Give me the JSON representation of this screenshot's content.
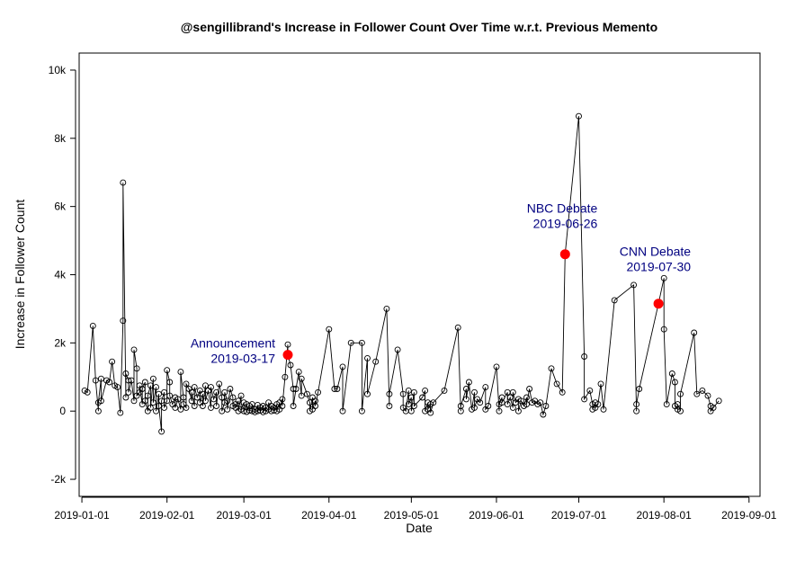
{
  "chart_data": {
    "type": "scatter",
    "title": "@sengillibrand's Increase in Follower Count Over Time w.r.t. Previous Memento",
    "xlabel": "Date",
    "ylabel": "Increase in Follower Count",
    "xlim": [
      "2018-12-31",
      "2019-09-05"
    ],
    "ylim": [
      -2500,
      10500
    ],
    "x_ticks": [
      "2019-01-01",
      "2019-02-01",
      "2019-03-01",
      "2019-04-01",
      "2019-05-01",
      "2019-06-01",
      "2019-07-01",
      "2019-08-01",
      "2019-09-01"
    ],
    "y_ticks": [
      {
        "value": -2000,
        "label": "-2k"
      },
      {
        "value": 0,
        "label": "0"
      },
      {
        "value": 2000,
        "label": "2k"
      },
      {
        "value": 4000,
        "label": "4k"
      },
      {
        "value": 6000,
        "label": "6k"
      },
      {
        "value": 8000,
        "label": "8k"
      },
      {
        "value": 10000,
        "label": "10k"
      }
    ],
    "grid": false,
    "series": [
      {
        "marker": "open-circle",
        "connected": true,
        "color": "#000000",
        "points": [
          [
            "2019-01-02",
            600
          ],
          [
            "2019-01-03",
            550
          ],
          [
            "2019-01-05",
            2500
          ],
          [
            "2019-01-06",
            900
          ],
          [
            "2019-01-07",
            0
          ],
          [
            "2019-01-07",
            250
          ],
          [
            "2019-01-08",
            950
          ],
          [
            "2019-01-08",
            300
          ],
          [
            "2019-01-10",
            900
          ],
          [
            "2019-01-11",
            850
          ],
          [
            "2019-01-12",
            1450
          ],
          [
            "2019-01-13",
            750
          ],
          [
            "2019-01-14",
            700
          ],
          [
            "2019-01-15",
            -50
          ],
          [
            "2019-01-16",
            2650
          ],
          [
            "2019-01-16",
            6700
          ],
          [
            "2019-01-17",
            400
          ],
          [
            "2019-01-17",
            1100
          ],
          [
            "2019-01-18",
            900
          ],
          [
            "2019-01-18",
            550
          ],
          [
            "2019-01-19",
            900
          ],
          [
            "2019-01-20",
            300
          ],
          [
            "2019-01-20",
            1800
          ],
          [
            "2019-01-21",
            1250
          ],
          [
            "2019-01-21",
            450
          ],
          [
            "2019-01-22",
            550
          ],
          [
            "2019-01-22",
            750
          ],
          [
            "2019-01-23",
            200
          ],
          [
            "2019-01-23",
            650
          ],
          [
            "2019-01-24",
            850
          ],
          [
            "2019-01-24",
            300
          ],
          [
            "2019-01-25",
            0
          ],
          [
            "2019-01-25",
            450
          ],
          [
            "2019-01-26",
            750
          ],
          [
            "2019-01-26",
            100
          ],
          [
            "2019-01-27",
            950
          ],
          [
            "2019-01-27",
            250
          ],
          [
            "2019-01-28",
            700
          ],
          [
            "2019-01-28",
            0
          ],
          [
            "2019-01-29",
            500
          ],
          [
            "2019-01-29",
            150
          ],
          [
            "2019-01-30",
            -600
          ],
          [
            "2019-01-30",
            300
          ],
          [
            "2019-01-31",
            550
          ],
          [
            "2019-01-31",
            100
          ],
          [
            "2019-02-01",
            300
          ],
          [
            "2019-02-01",
            1200
          ],
          [
            "2019-02-02",
            850
          ],
          [
            "2019-02-02",
            450
          ],
          [
            "2019-02-03",
            200
          ],
          [
            "2019-02-04",
            400
          ],
          [
            "2019-02-04",
            100
          ],
          [
            "2019-02-05",
            350
          ],
          [
            "2019-02-06",
            50
          ],
          [
            "2019-02-06",
            1150
          ],
          [
            "2019-02-07",
            400
          ],
          [
            "2019-02-07",
            200
          ],
          [
            "2019-02-08",
            100
          ],
          [
            "2019-02-08",
            800
          ],
          [
            "2019-02-09",
            650
          ],
          [
            "2019-02-10",
            300
          ],
          [
            "2019-02-10",
            550
          ],
          [
            "2019-02-11",
            150
          ],
          [
            "2019-02-11",
            700
          ],
          [
            "2019-02-12",
            400
          ],
          [
            "2019-02-13",
            600
          ],
          [
            "2019-02-13",
            250
          ],
          [
            "2019-02-14",
            500
          ],
          [
            "2019-02-14",
            150
          ],
          [
            "2019-02-15",
            750
          ],
          [
            "2019-02-15",
            300
          ],
          [
            "2019-02-16",
            600
          ],
          [
            "2019-02-17",
            100
          ],
          [
            "2019-02-17",
            700
          ],
          [
            "2019-02-18",
            350
          ],
          [
            "2019-02-19",
            550
          ],
          [
            "2019-02-19",
            150
          ],
          [
            "2019-02-20",
            800
          ],
          [
            "2019-02-21",
            400
          ],
          [
            "2019-02-21",
            0
          ],
          [
            "2019-02-22",
            250
          ],
          [
            "2019-02-22",
            550
          ],
          [
            "2019-02-23",
            300
          ],
          [
            "2019-02-23",
            50
          ],
          [
            "2019-02-24",
            650
          ],
          [
            "2019-02-25",
            400
          ],
          [
            "2019-02-25",
            150
          ],
          [
            "2019-02-26",
            200
          ],
          [
            "2019-02-26",
            100
          ],
          [
            "2019-02-27",
            300
          ],
          [
            "2019-02-27",
            0
          ],
          [
            "2019-02-28",
            450
          ],
          [
            "2019-02-28",
            50
          ],
          [
            "2019-03-01",
            250
          ],
          [
            "2019-03-01",
            0
          ],
          [
            "2019-03-02",
            200
          ],
          [
            "2019-03-02",
            -20
          ],
          [
            "2019-03-03",
            150
          ],
          [
            "2019-03-03",
            20
          ],
          [
            "2019-03-04",
            0
          ],
          [
            "2019-03-04",
            200
          ],
          [
            "2019-03-05",
            50
          ],
          [
            "2019-03-05",
            -30
          ],
          [
            "2019-03-06",
            180
          ],
          [
            "2019-03-06",
            0
          ],
          [
            "2019-03-07",
            100
          ],
          [
            "2019-03-07",
            20
          ],
          [
            "2019-03-08",
            150
          ],
          [
            "2019-03-08",
            -30
          ],
          [
            "2019-03-09",
            100
          ],
          [
            "2019-03-09",
            0
          ],
          [
            "2019-03-10",
            50
          ],
          [
            "2019-03-10",
            250
          ],
          [
            "2019-03-11",
            0
          ],
          [
            "2019-03-11",
            150
          ],
          [
            "2019-03-12",
            100
          ],
          [
            "2019-03-12",
            20
          ],
          [
            "2019-03-13",
            200
          ],
          [
            "2019-03-13",
            0
          ],
          [
            "2019-03-14",
            250
          ],
          [
            "2019-03-14",
            50
          ],
          [
            "2019-03-15",
            350
          ],
          [
            "2019-03-15",
            150
          ],
          [
            "2019-03-16",
            1000
          ],
          [
            "2019-03-17",
            1950
          ],
          [
            "2019-03-17",
            1650
          ],
          [
            "2019-03-18",
            1350
          ],
          [
            "2019-03-19",
            650
          ],
          [
            "2019-03-19",
            150
          ],
          [
            "2019-03-20",
            650
          ],
          [
            "2019-03-21",
            1150
          ],
          [
            "2019-03-22",
            450
          ],
          [
            "2019-03-22",
            950
          ],
          [
            "2019-03-24",
            500
          ],
          [
            "2019-03-25",
            250
          ],
          [
            "2019-03-25",
            0
          ],
          [
            "2019-03-26",
            400
          ],
          [
            "2019-03-26",
            50
          ],
          [
            "2019-03-27",
            300
          ],
          [
            "2019-03-27",
            150
          ],
          [
            "2019-03-28",
            550
          ],
          [
            "2019-04-01",
            2400
          ],
          [
            "2019-04-03",
            650
          ],
          [
            "2019-04-04",
            650
          ],
          [
            "2019-04-06",
            1300
          ],
          [
            "2019-04-06",
            0
          ],
          [
            "2019-04-09",
            2000
          ],
          [
            "2019-04-13",
            2000
          ],
          [
            "2019-04-13",
            0
          ],
          [
            "2019-04-15",
            1550
          ],
          [
            "2019-04-15",
            500
          ],
          [
            "2019-04-18",
            1450
          ],
          [
            "2019-04-22",
            3000
          ],
          [
            "2019-04-23",
            150
          ],
          [
            "2019-04-23",
            500
          ],
          [
            "2019-04-26",
            1800
          ],
          [
            "2019-04-28",
            500
          ],
          [
            "2019-04-28",
            100
          ],
          [
            "2019-04-29",
            0
          ],
          [
            "2019-04-30",
            600
          ],
          [
            "2019-04-30",
            200
          ],
          [
            "2019-05-01",
            400
          ],
          [
            "2019-05-01",
            0
          ],
          [
            "2019-05-02",
            550
          ],
          [
            "2019-05-02",
            150
          ],
          [
            "2019-05-05",
            400
          ],
          [
            "2019-05-06",
            600
          ],
          [
            "2019-05-06",
            0
          ],
          [
            "2019-05-07",
            250
          ],
          [
            "2019-05-07",
            50
          ],
          [
            "2019-05-08",
            200
          ],
          [
            "2019-05-08",
            -50
          ],
          [
            "2019-05-09",
            250
          ],
          [
            "2019-05-13",
            600
          ],
          [
            "2019-05-18",
            2450
          ],
          [
            "2019-05-19",
            0
          ],
          [
            "2019-05-19",
            150
          ],
          [
            "2019-05-21",
            650
          ],
          [
            "2019-05-21",
            350
          ],
          [
            "2019-05-22",
            850
          ],
          [
            "2019-05-23",
            50
          ],
          [
            "2019-05-24",
            550
          ],
          [
            "2019-05-24",
            100
          ],
          [
            "2019-05-25",
            350
          ],
          [
            "2019-05-26",
            250
          ],
          [
            "2019-05-28",
            700
          ],
          [
            "2019-05-28",
            50
          ],
          [
            "2019-05-29",
            150
          ],
          [
            "2019-06-01",
            1300
          ],
          [
            "2019-06-02",
            0
          ],
          [
            "2019-06-02",
            200
          ],
          [
            "2019-06-03",
            400
          ],
          [
            "2019-06-03",
            250
          ],
          [
            "2019-06-05",
            550
          ],
          [
            "2019-06-05",
            200
          ],
          [
            "2019-06-06",
            400
          ],
          [
            "2019-06-07",
            100
          ],
          [
            "2019-06-07",
            550
          ],
          [
            "2019-06-08",
            250
          ],
          [
            "2019-06-09",
            350
          ],
          [
            "2019-06-09",
            0
          ],
          [
            "2019-06-10",
            300
          ],
          [
            "2019-06-11",
            150
          ],
          [
            "2019-06-12",
            400
          ],
          [
            "2019-06-12",
            200
          ],
          [
            "2019-06-13",
            650
          ],
          [
            "2019-06-14",
            250
          ],
          [
            "2019-06-15",
            300
          ],
          [
            "2019-06-16",
            200
          ],
          [
            "2019-06-17",
            250
          ],
          [
            "2019-06-18",
            -100
          ],
          [
            "2019-06-19",
            150
          ],
          [
            "2019-06-21",
            1250
          ],
          [
            "2019-06-23",
            800
          ],
          [
            "2019-06-25",
            550
          ],
          [
            "2019-06-26",
            4600
          ],
          [
            "2019-07-01",
            8650
          ],
          [
            "2019-07-03",
            1600
          ],
          [
            "2019-07-03",
            350
          ],
          [
            "2019-07-05",
            600
          ],
          [
            "2019-07-06",
            200
          ],
          [
            "2019-07-06",
            50
          ],
          [
            "2019-07-07",
            250
          ],
          [
            "2019-07-07",
            100
          ],
          [
            "2019-07-08",
            200
          ],
          [
            "2019-07-09",
            800
          ],
          [
            "2019-07-10",
            50
          ],
          [
            "2019-07-14",
            3250
          ],
          [
            "2019-07-21",
            3700
          ],
          [
            "2019-07-22",
            0
          ],
          [
            "2019-07-22",
            200
          ],
          [
            "2019-07-23",
            650
          ],
          [
            "2019-07-30",
            3150
          ],
          [
            "2019-08-01",
            3900
          ],
          [
            "2019-08-01",
            2400
          ],
          [
            "2019-08-02",
            200
          ],
          [
            "2019-08-04",
            1100
          ],
          [
            "2019-08-05",
            850
          ],
          [
            "2019-08-05",
            150
          ],
          [
            "2019-08-06",
            50
          ],
          [
            "2019-08-06",
            200
          ],
          [
            "2019-08-07",
            0
          ],
          [
            "2019-08-07",
            500
          ],
          [
            "2019-08-12",
            2300
          ],
          [
            "2019-08-13",
            500
          ],
          [
            "2019-08-15",
            600
          ],
          [
            "2019-08-17",
            450
          ],
          [
            "2019-08-18",
            150
          ],
          [
            "2019-08-18",
            0
          ],
          [
            "2019-08-19",
            100
          ],
          [
            "2019-08-21",
            300
          ]
        ]
      }
    ],
    "events": [
      {
        "date": "2019-03-17",
        "value": 1650,
        "label": "Announcement",
        "date_label": "2019-03-17"
      },
      {
        "date": "2019-06-26",
        "value": 4600,
        "label": "NBC Debate",
        "date_label": "2019-06-26"
      },
      {
        "date": "2019-07-30",
        "value": 3150,
        "label": "CNN Debate",
        "date_label": "2019-07-30"
      }
    ],
    "event_color": "#ff0000",
    "annotation_color": "#000080"
  }
}
